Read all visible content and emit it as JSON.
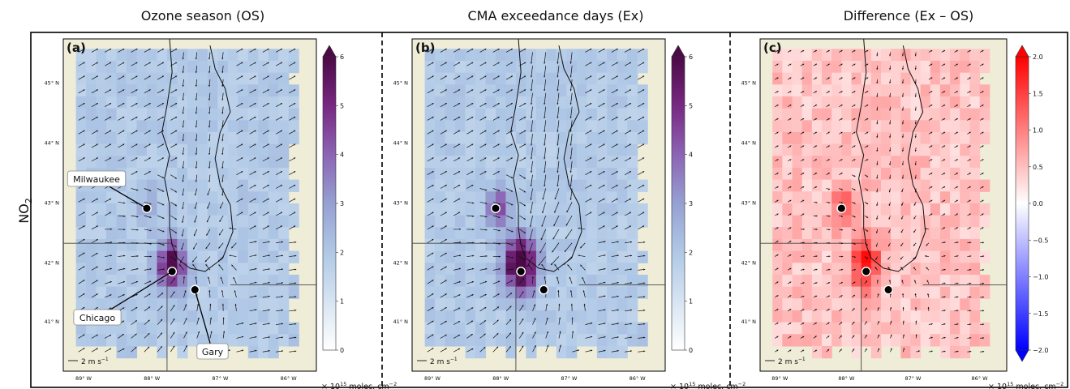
{
  "columns": [
    {
      "title": "Ozone season (OS)"
    },
    {
      "title": "CMA exceedance days (Ex)"
    },
    {
      "title": "Difference (Ex – OS)"
    }
  ],
  "row_label": "NO",
  "row_label_sub": "2",
  "colors": {
    "land": "#efedd7",
    "purple_high": "#4b0a45",
    "diverging_neg": "#0000ff",
    "diverging_pos": "#ff0000"
  },
  "chart_data": [
    {
      "type": "heatmap",
      "panel_label": "(a)",
      "title": "Ozone season (OS)",
      "colorbar": {
        "ticks": [
          "0",
          "1",
          "2",
          "3",
          "4",
          "5",
          "6"
        ],
        "range": [
          0,
          6
        ],
        "extend": "max",
        "unit_prefix": "× 10",
        "unit_exp": "15",
        "unit": " molec. cm",
        "unit_exp2": "−2"
      },
      "x_ticks": [
        "89° W",
        "88° W",
        "87° W",
        "86° W"
      ],
      "y_ticks": [
        "45° N",
        "44° N",
        "43° N",
        "42° N",
        "41° N"
      ],
      "cities": [
        {
          "name": "Milwaukee",
          "lon": -87.9,
          "lat": 43.04
        },
        {
          "name": "Chicago",
          "lon": -87.63,
          "lat": 41.88
        },
        {
          "name": "Gary",
          "lon": -87.35,
          "lat": 41.6
        }
      ],
      "wind_key": "2 m s",
      "wind_key_exp": "−1"
    },
    {
      "type": "heatmap",
      "panel_label": "(b)",
      "title": "CMA exceedance days (Ex)",
      "colorbar": {
        "ticks": [
          "0",
          "1",
          "2",
          "3",
          "4",
          "5",
          "6"
        ],
        "range": [
          0,
          6
        ],
        "extend": "max",
        "unit_prefix": "× 10",
        "unit_exp": "15",
        "unit": " molec. cm",
        "unit_exp2": "−2"
      },
      "x_ticks": [
        "89° W",
        "88° W",
        "87° W",
        "86° W"
      ],
      "y_ticks": [
        "45° N",
        "44° N",
        "43° N",
        "42° N",
        "41° N"
      ],
      "wind_key": "2 m s",
      "wind_key_exp": "−1"
    },
    {
      "type": "heatmap",
      "panel_label": "(c)",
      "title": "Difference (Ex – OS)",
      "colorbar": {
        "ticks": [
          "2.0",
          "1.5",
          "1.0",
          "0.5",
          "0.0",
          "−0.5",
          "−1.0",
          "−1.5",
          "−2.0"
        ],
        "range": [
          -2,
          2
        ],
        "extend": "both",
        "unit_prefix": "× 10",
        "unit_exp": "15",
        "unit": " molec. cm",
        "unit_exp2": "−2"
      },
      "x_ticks": [
        "89° W",
        "88° W",
        "87° W",
        "86° W"
      ],
      "y_ticks": [
        "45° N",
        "44° N",
        "43° N",
        "42° N",
        "41° N"
      ],
      "wind_key": "2 m s",
      "wind_key_exp": "−1"
    }
  ]
}
